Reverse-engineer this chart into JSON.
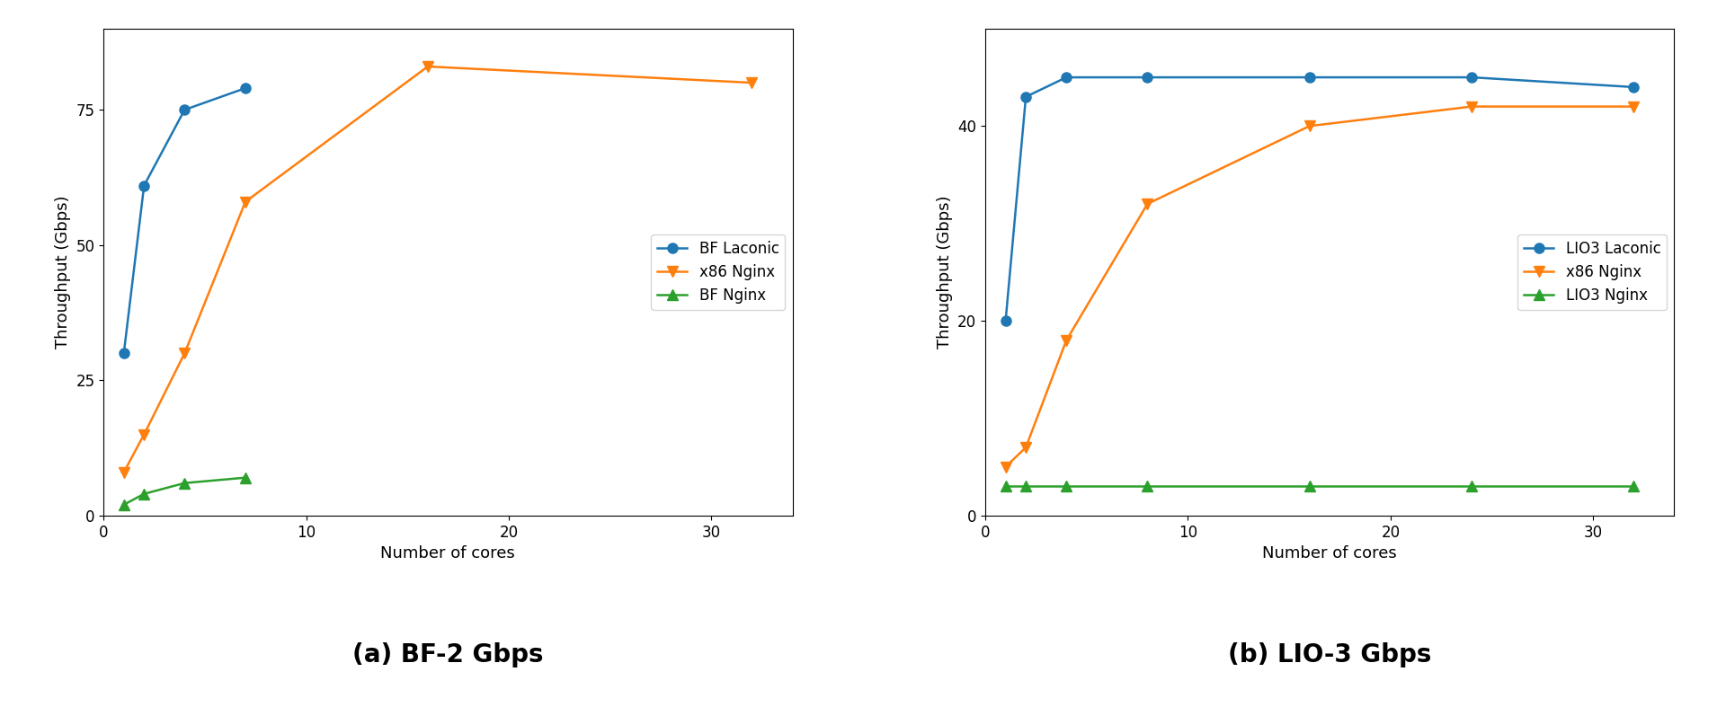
{
  "left": {
    "title": "(a) BF-2 Gbps",
    "xlabel": "Number of cores",
    "ylabel": "Throughput (Gbps)",
    "series": [
      {
        "label": "BF Laconic",
        "x": [
          1,
          2,
          4,
          7
        ],
        "y": [
          30,
          61,
          75,
          79
        ],
        "color": "#1f77b4",
        "marker": "o",
        "linestyle": "-"
      },
      {
        "label": "x86 Nginx",
        "x": [
          1,
          2,
          4,
          7,
          16,
          32
        ],
        "y": [
          8,
          15,
          30,
          58,
          83,
          80
        ],
        "color": "#ff7f0e",
        "marker": "v",
        "linestyle": "-"
      },
      {
        "label": "BF Nginx",
        "x": [
          1,
          2,
          4,
          7
        ],
        "y": [
          2,
          4,
          6,
          7
        ],
        "color": "#2ca02c",
        "marker": "^",
        "linestyle": "-"
      }
    ],
    "xlim": [
      0,
      34
    ],
    "ylim": [
      0,
      90
    ],
    "xticks": [
      0,
      10,
      20,
      30
    ],
    "yticks": [
      0,
      25,
      50,
      75
    ],
    "legend_loc": "center right"
  },
  "right": {
    "title": "(b) LIO-3 Gbps",
    "xlabel": "Number of cores",
    "ylabel": "Throughput (Gbps)",
    "series": [
      {
        "label": "LIO3 Laconic",
        "x": [
          1,
          2,
          4,
          8,
          16,
          24,
          32
        ],
        "y": [
          20,
          43,
          45,
          45,
          45,
          45,
          44
        ],
        "color": "#1f77b4",
        "marker": "o",
        "linestyle": "-"
      },
      {
        "label": "x86 Nginx",
        "x": [
          1,
          2,
          4,
          8,
          16,
          24,
          32
        ],
        "y": [
          5,
          7,
          18,
          32,
          40,
          42,
          42
        ],
        "color": "#ff7f0e",
        "marker": "v",
        "linestyle": "-"
      },
      {
        "label": "LIO3 Nginx",
        "x": [
          1,
          2,
          4,
          8,
          16,
          24,
          32
        ],
        "y": [
          3,
          3,
          3,
          3,
          3,
          3,
          3
        ],
        "color": "#2ca02c",
        "marker": "^",
        "linestyle": "-"
      }
    ],
    "xlim": [
      0,
      34
    ],
    "ylim": [
      0,
      50
    ],
    "xticks": [
      0,
      10,
      20,
      30
    ],
    "yticks": [
      0,
      20,
      40
    ],
    "legend_loc": "center right"
  },
  "figure_bg": "#ffffff",
  "title_fontsize": 20,
  "label_fontsize": 13,
  "tick_fontsize": 12,
  "legend_fontsize": 12,
  "linewidth": 1.8,
  "markersize": 8
}
